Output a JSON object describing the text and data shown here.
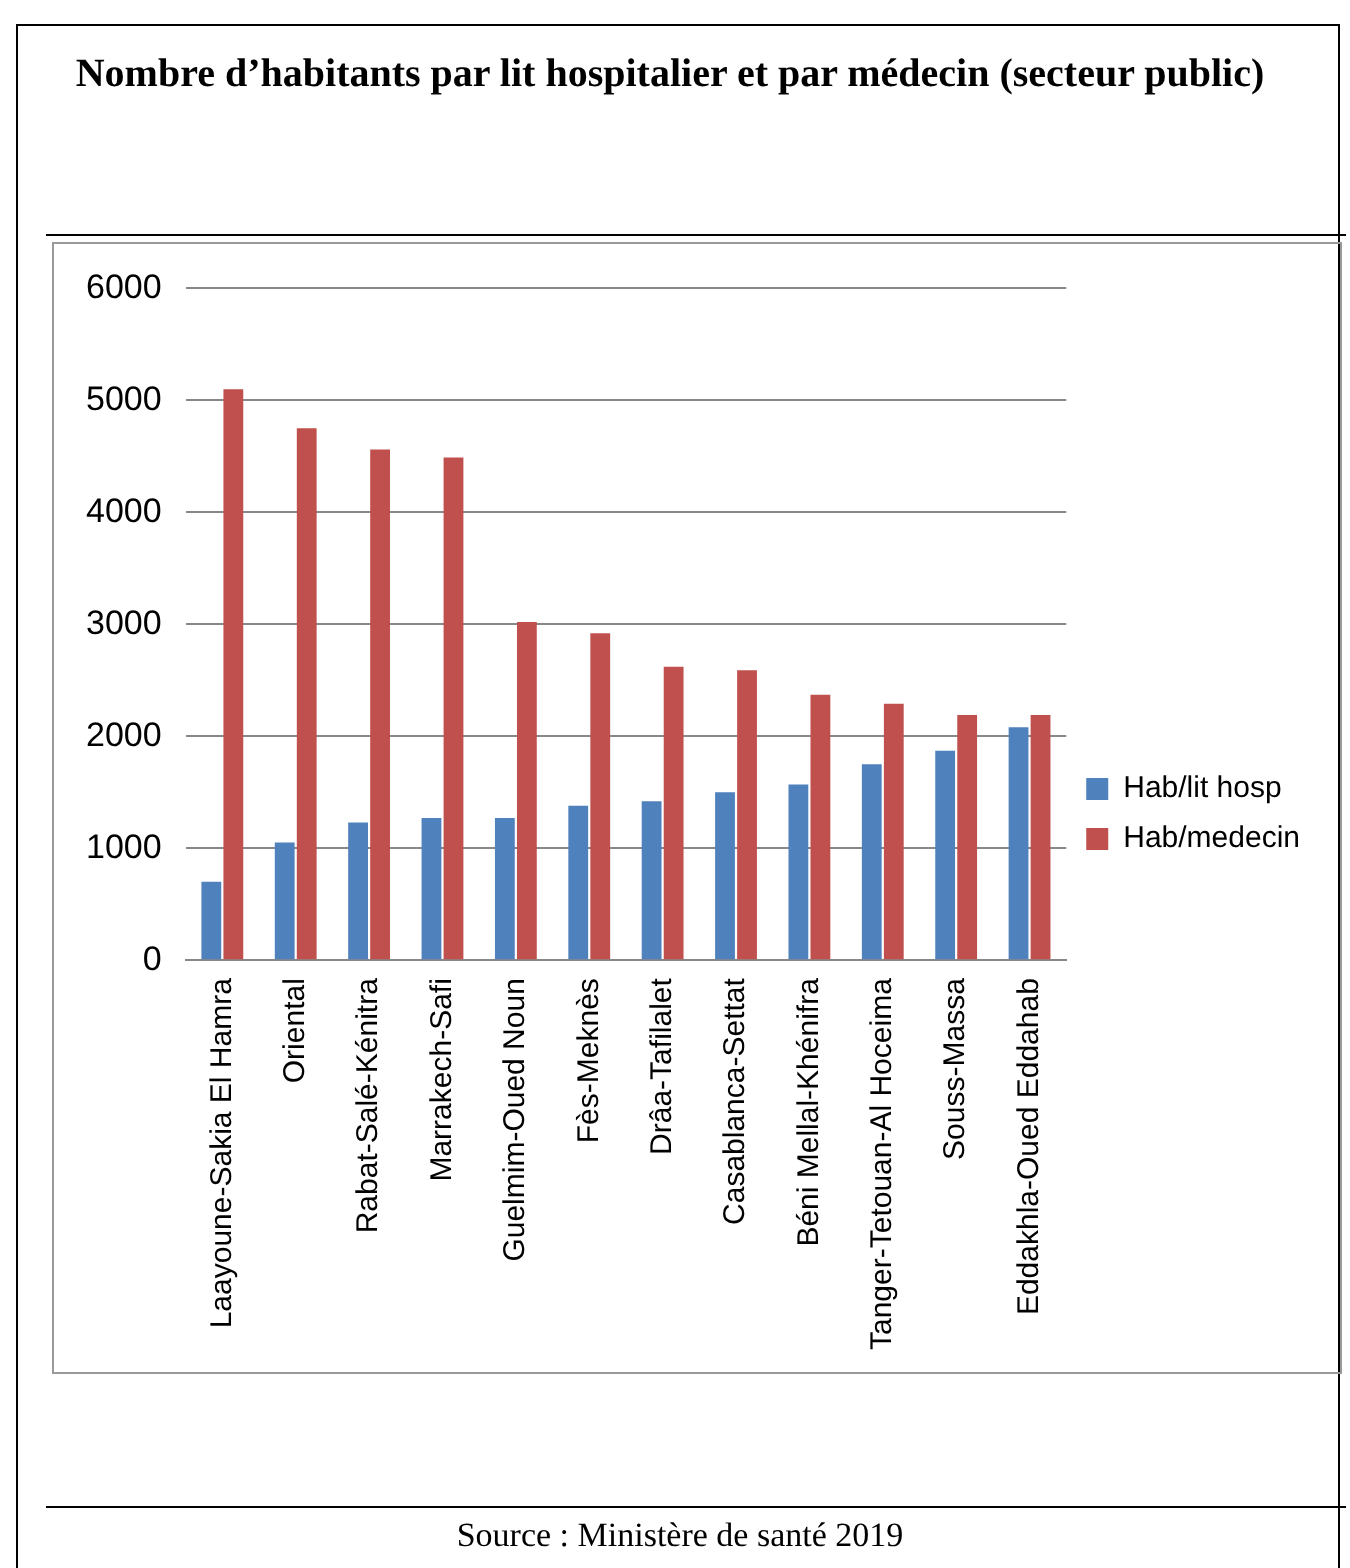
{
  "chart_data": {
    "type": "bar",
    "title": "Nombre d’habitants par lit hospitalier et par médecin (secteur public)",
    "categories": [
      "Laayoune-Sakia El Hamra",
      "Oriental",
      "Rabat-Salé-Kénitra",
      "Marrakech-Safi",
      "Guelmim-Oued Noun",
      "Fès-Meknès",
      "Drâa-Tafilalet",
      "Casablanca-Settat",
      "Béni Mellal-Khénifra",
      "Tanger-Tetouan-Al Hoceima",
      "Souss-Massa",
      "Eddakhla-Oued Eddahab"
    ],
    "series": [
      {
        "name": "Hab/lit hosp",
        "color": "#4f81bd",
        "values": [
          700,
          1050,
          1230,
          1270,
          1270,
          1380,
          1420,
          1500,
          1570,
          1750,
          1870,
          2080
        ]
      },
      {
        "name": "Hab/medecin",
        "color": "#c0504d",
        "values": [
          5100,
          4750,
          4560,
          4490,
          3020,
          2920,
          2620,
          2590,
          2370,
          2290,
          2190,
          2190
        ]
      }
    ],
    "ylim": [
      0,
      6000
    ],
    "yticks": [
      0,
      1000,
      2000,
      3000,
      4000,
      5000,
      6000
    ],
    "grid": "y",
    "legend": "right",
    "annotations": [
      "Source : Ministère de santé 2019"
    ]
  }
}
